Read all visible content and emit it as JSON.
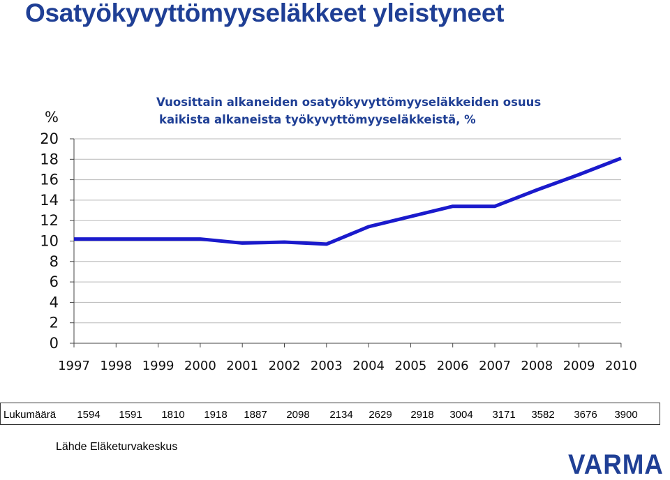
{
  "page": {
    "title": "Osatyökyvyttömyyseläkkeet yleistyneet",
    "source": "Lähde Eläketurvakeskus",
    "logo": "VARMA"
  },
  "chart_data": {
    "type": "line",
    "title_lines": [
      "Vuosittain alkaneiden osatyökyvyttömyyseläkkeiden osuus",
      "kaikista alkaneista työkyvyttömyyseläkkeistä, %"
    ],
    "ylabel": "%",
    "ylim": [
      0,
      20
    ],
    "yticks": [
      0,
      2,
      4,
      6,
      8,
      10,
      12,
      14,
      16,
      18,
      20
    ],
    "grid": true,
    "categories": [
      "1997",
      "1998",
      "1999",
      "2000",
      "2001",
      "2002",
      "2003",
      "2004",
      "2005",
      "2006",
      "2007",
      "2008",
      "2009",
      "2010"
    ],
    "series": [
      {
        "values": [
          10.2,
          10.2,
          10.2,
          10.2,
          9.8,
          9.9,
          9.7,
          11.4,
          12.4,
          13.4,
          13.4,
          15.0,
          16.5,
          18.1
        ]
      }
    ],
    "line_color": "#1a1acc"
  },
  "table": {
    "label": "Lukumäärä",
    "values": [
      "1594",
      "1591",
      "1810",
      "1918",
      "1887",
      "2098",
      "2134",
      "2629",
      "2918",
      "3004",
      "3171",
      "3582",
      "3676",
      "3900"
    ]
  }
}
